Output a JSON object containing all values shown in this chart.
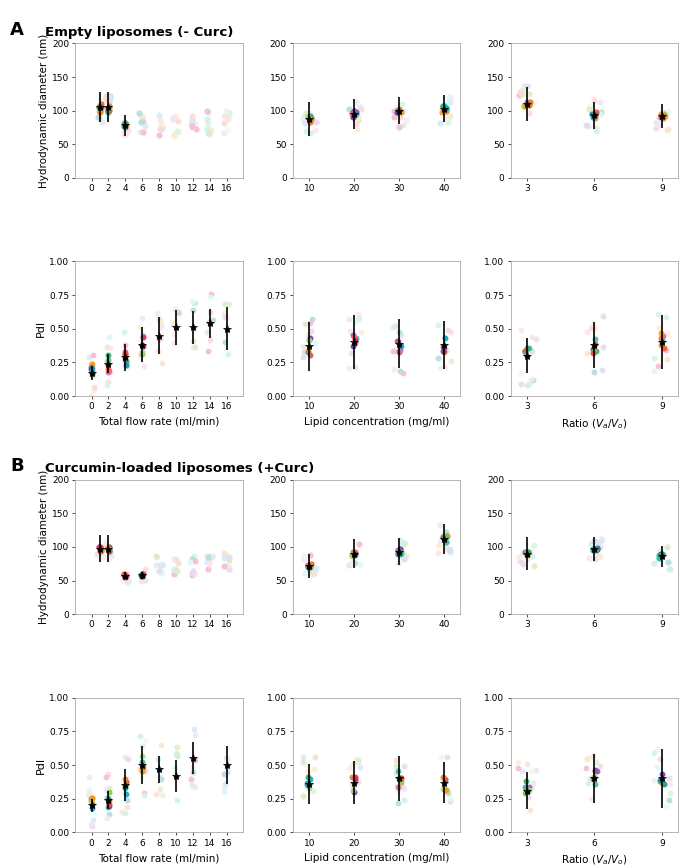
{
  "title_A": "Empty liposomes (- Curc)",
  "title_B": "Curcumin-loaded liposomes (+Curc)",
  "ylabel_size": "Hydrodynamic diameter (nm)",
  "ylabel_pdi": "PdI",
  "xlabel_tfr": "Total flow rate (ml/min)",
  "xlabel_lc": "Lipid concentration (mg/ml)",
  "xlabel_ratio": "Ratio (V_a/V_o)",
  "A_size_tfr": {
    "x_ticks": [
      0,
      2,
      4,
      6,
      8,
      10,
      12,
      14,
      16
    ],
    "means": [
      null,
      105,
      78,
      null,
      null,
      null,
      null,
      null,
      null
    ],
    "err_low": [
      null,
      22,
      16,
      null,
      null,
      null,
      null,
      null,
      null
    ],
    "err_high": [
      null,
      22,
      16,
      null,
      null,
      null,
      null,
      null,
      null
    ]
  },
  "A_pdi_tfr": {
    "x_ticks": [
      0,
      2,
      4,
      6,
      8,
      10,
      12,
      14,
      16
    ],
    "means": [
      0.17,
      0.24,
      0.29,
      0.38,
      0.45,
      0.51,
      0.51,
      0.54,
      0.5
    ],
    "err_low": [
      0.05,
      0.07,
      0.1,
      0.13,
      0.14,
      0.13,
      0.12,
      0.11,
      0.16
    ],
    "err_high": [
      0.05,
      0.07,
      0.1,
      0.13,
      0.14,
      0.13,
      0.12,
      0.11,
      0.16
    ]
  },
  "A_size_lc": {
    "x_ticks": [
      10,
      20,
      30,
      40
    ],
    "means": [
      88,
      95,
      100,
      103
    ],
    "err_low": [
      25,
      22,
      20,
      20
    ],
    "err_high": [
      25,
      22,
      20,
      20
    ]
  },
  "A_pdi_lc": {
    "x_ticks": [
      10,
      20,
      30,
      40
    ],
    "means": [
      0.37,
      0.4,
      0.39,
      0.38
    ],
    "err_low": [
      0.18,
      0.2,
      0.18,
      0.18
    ],
    "err_high": [
      0.18,
      0.2,
      0.18,
      0.18
    ]
  },
  "A_size_ratio": {
    "x_ticks": [
      3,
      6,
      9
    ],
    "means": [
      110,
      93,
      92
    ],
    "err_low": [
      25,
      20,
      18
    ],
    "err_high": [
      25,
      20,
      18
    ]
  },
  "A_pdi_ratio": {
    "x_ticks": [
      3,
      6,
      9
    ],
    "means": [
      0.3,
      0.38,
      0.4
    ],
    "err_low": [
      0.13,
      0.17,
      0.2
    ],
    "err_high": [
      0.13,
      0.17,
      0.2
    ]
  },
  "B_size_tfr": {
    "x_ticks": [
      0,
      2,
      4,
      6,
      8,
      10,
      12,
      14,
      16
    ],
    "means": [
      null,
      97,
      57,
      58,
      null,
      null,
      null,
      null,
      null
    ],
    "err_low": [
      null,
      20,
      5,
      5,
      null,
      null,
      null,
      null,
      null
    ],
    "err_high": [
      null,
      20,
      5,
      5,
      null,
      null,
      null,
      null,
      null
    ]
  },
  "B_pdi_tfr": {
    "x_ticks": [
      0,
      2,
      4,
      6,
      8,
      10,
      12,
      14,
      16
    ],
    "means": [
      0.2,
      0.24,
      0.35,
      0.5,
      0.47,
      0.42,
      0.55,
      null,
      0.5
    ],
    "err_low": [
      0.05,
      0.07,
      0.12,
      0.14,
      0.1,
      0.12,
      0.12,
      null,
      0.14
    ],
    "err_high": [
      0.05,
      0.07,
      0.12,
      0.14,
      0.1,
      0.12,
      0.12,
      null,
      0.14
    ]
  },
  "B_size_lc": {
    "x_ticks": [
      10,
      20,
      30,
      40
    ],
    "means": [
      72,
      90,
      93,
      112
    ],
    "err_low": [
      18,
      22,
      20,
      22
    ],
    "err_high": [
      18,
      22,
      20,
      22
    ]
  },
  "B_pdi_lc": {
    "x_ticks": [
      10,
      20,
      30,
      40
    ],
    "means": [
      0.36,
      0.37,
      0.4,
      0.37
    ],
    "err_low": [
      0.15,
      0.16,
      0.17,
      0.15
    ],
    "err_high": [
      0.15,
      0.16,
      0.17,
      0.15
    ]
  },
  "B_size_ratio": {
    "x_ticks": [
      3,
      6,
      9
    ],
    "means": [
      90,
      97,
      86
    ],
    "err_low": [
      25,
      18,
      16
    ],
    "err_high": [
      25,
      18,
      16
    ]
  },
  "B_pdi_ratio": {
    "x_ticks": [
      3,
      6,
      9
    ],
    "means": [
      0.31,
      0.4,
      0.4
    ],
    "err_low": [
      0.14,
      0.18,
      0.22
    ],
    "err_high": [
      0.14,
      0.18,
      0.22
    ]
  },
  "vivid_colors": [
    "#e74c3c",
    "#9b59b6",
    "#2980b9",
    "#1abc9c",
    "#27ae60",
    "#f39c12",
    "#e67e22",
    "#e91e63",
    "#00acc1",
    "#8bc34a",
    "#ff5722",
    "#673ab7",
    "#f06292",
    "#4db6ac",
    "#aed581"
  ],
  "faded_colors": [
    "#fadbd8",
    "#e8daef",
    "#d6eaf8",
    "#d1f2eb",
    "#d5f5e3",
    "#fdebd0",
    "#fae5d3",
    "#fce4ec",
    "#e0f7fa",
    "#f1f8e9",
    "#fbe9e7",
    "#ede7f6",
    "#f8bbd0",
    "#b2dfdb",
    "#dcedc8"
  ],
  "bg_color": "#ffffff",
  "panel_bg": "#ffffff",
  "spine_color": "#aaaaaa"
}
